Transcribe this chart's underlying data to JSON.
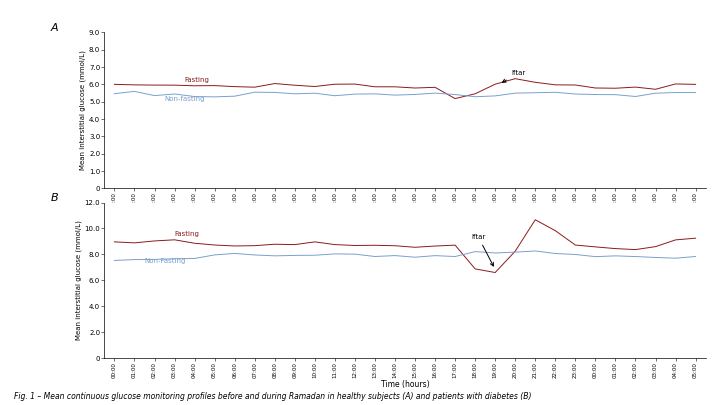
{
  "panel_A": {
    "label": "A",
    "ylabel": "Mean interstitial glucose (mmol/L)",
    "ylim": [
      0,
      9.0
    ],
    "yticks": [
      0,
      1.0,
      2.0,
      3.0,
      4.0,
      5.0,
      6.0,
      7.0,
      8.0,
      9.0
    ],
    "fasting_label": "Fasting",
    "nonfasting_label": "Non-fasting",
    "iftar_label": "Iftar",
    "fasting_color": "#8B1A1A",
    "nonfasting_color": "#7B9FCC",
    "fasting_base": 5.9,
    "nonfasting_base": 5.45,
    "iftar_index": 18,
    "iftar_peak": 6.3,
    "iftar_dip": 5.1
  },
  "panel_B": {
    "label": "B",
    "ylabel": "Mean interstitial glucose (mmol/L)",
    "ylim": [
      0,
      12.0
    ],
    "yticks": [
      0,
      2.0,
      4.0,
      6.0,
      8.0,
      10.0,
      12.0
    ],
    "fasting_label": "Fasting",
    "nonfasting_label": "Non-Fasting",
    "iftar_label": "Iftar",
    "fasting_color": "#8B1A1A",
    "nonfasting_color": "#7B9FCC",
    "fasting_base": 8.9,
    "nonfasting_base": 8.0,
    "iftar_index": 18,
    "iftar_peak": 10.6,
    "iftar_dip": 6.7
  },
  "time_labels": [
    "00:00",
    "01:00",
    "02:00",
    "03:00",
    "04:00",
    "05:00",
    "06:00",
    "07:00",
    "08:00",
    "09:00",
    "10:00",
    "11:00",
    "12:00",
    "13:00",
    "14:00",
    "15:00",
    "16:00",
    "17:00",
    "18:00",
    "19:00",
    "20:00",
    "21:00",
    "22:00",
    "23:00",
    "00:00",
    "01:00",
    "02:00",
    "03:00",
    "04:00",
    "05:00"
  ],
  "xlabel": "Time (hours)",
  "caption": "Fig. 1 – Mean continuous glucose monitoring profiles before and during Ramadan in healthy subjects (A) and patients with diabetes (B)",
  "background_color": "#ffffff",
  "line_width": 0.7
}
